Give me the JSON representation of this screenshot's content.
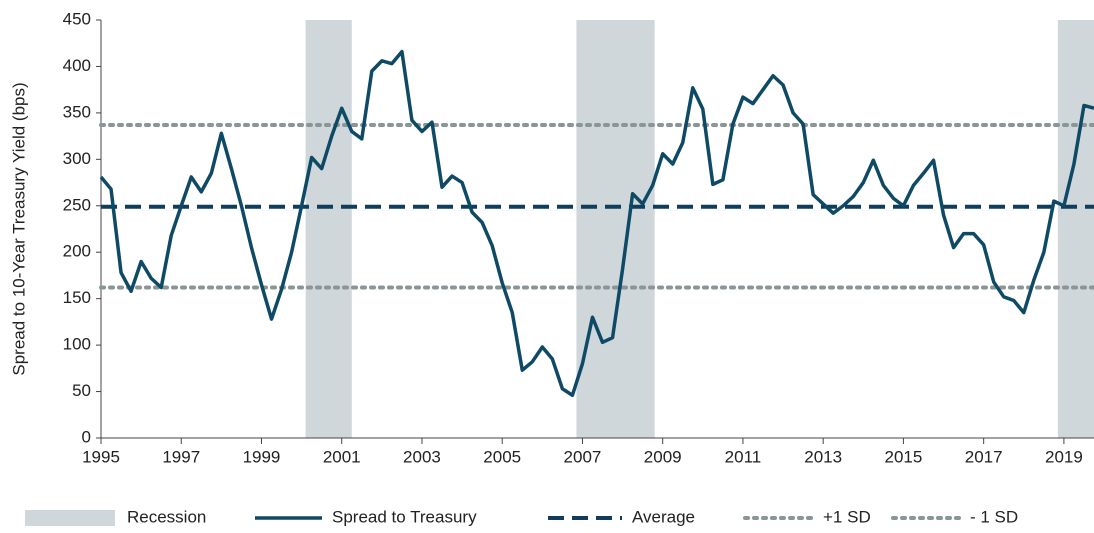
{
  "chart_data": {
    "type": "line",
    "ylabel": "Spread to 10-Year Treasury Yield (bps)",
    "xlim": [
      1995,
      2019.75
    ],
    "xticks": [
      1995,
      1997,
      1999,
      2001,
      2003,
      2005,
      2007,
      2009,
      2011,
      2013,
      2015,
      2017,
      2019
    ],
    "ylim": [
      0,
      450
    ],
    "yticks": [
      0,
      50,
      100,
      150,
      200,
      250,
      300,
      350,
      400,
      450
    ],
    "x": [
      1995,
      1995.25,
      1995.5,
      1995.75,
      1996,
      1996.25,
      1996.5,
      1996.75,
      1997,
      1997.25,
      1997.5,
      1997.75,
      1998,
      1998.25,
      1998.5,
      1998.75,
      1999,
      1999.25,
      1999.5,
      1999.75,
      2000,
      2000.25,
      2000.5,
      2000.75,
      2001,
      2001.25,
      2001.5,
      2001.75,
      2002,
      2002.25,
      2002.5,
      2002.75,
      2003,
      2003.25,
      2003.5,
      2003.75,
      2004,
      2004.25,
      2004.5,
      2004.75,
      2005,
      2005.25,
      2005.5,
      2005.75,
      2006,
      2006.25,
      2006.5,
      2006.75,
      2007,
      2007.25,
      2007.5,
      2007.75,
      2008,
      2008.25,
      2008.5,
      2008.75,
      2009,
      2009.25,
      2009.5,
      2009.75,
      2010,
      2010.25,
      2010.5,
      2010.75,
      2011,
      2011.25,
      2011.5,
      2011.75,
      2012,
      2012.25,
      2012.5,
      2012.75,
      2013,
      2013.25,
      2013.5,
      2013.75,
      2014,
      2014.25,
      2014.5,
      2014.75,
      2015,
      2015.25,
      2015.5,
      2015.75,
      2016,
      2016.25,
      2016.5,
      2016.75,
      2017,
      2017.25,
      2017.5,
      2017.75,
      2018,
      2018.25,
      2018.5,
      2018.75,
      2019,
      2019.25,
      2019.5,
      2019.75
    ],
    "series": [
      {
        "name": "Spread to Treasury",
        "color": "#0e4a66",
        "values": [
          281,
          268,
          178,
          158,
          190,
          172,
          162,
          218,
          250,
          281,
          265,
          285,
          328,
          290,
          250,
          205,
          165,
          128,
          160,
          200,
          250,
          302,
          290,
          325,
          355,
          330,
          322,
          395,
          406,
          403,
          416,
          342,
          330,
          340,
          270,
          282,
          275,
          243,
          232,
          207,
          167,
          135,
          73,
          82,
          98,
          85,
          53,
          46,
          80,
          130,
          103,
          108,
          182,
          263,
          252,
          272,
          306,
          295,
          318,
          377,
          354,
          273,
          278,
          338,
          367,
          360,
          375,
          390,
          380,
          350,
          338,
          262,
          252,
          242,
          250,
          260,
          275,
          299,
          272,
          258,
          250,
          272,
          285,
          299,
          240,
          205,
          220,
          220,
          208,
          168,
          152,
          148,
          135,
          170,
          200,
          255,
          250,
          295,
          358,
          355
        ]
      }
    ],
    "bands": {
      "name": "Recession",
      "color": "#d0d7da",
      "ranges": [
        [
          2000.1,
          2001.25
        ],
        [
          2006.85,
          2008.8
        ],
        [
          2018.85,
          2019.75
        ]
      ]
    },
    "hlines": [
      {
        "name": "Average",
        "value": 249,
        "color": "#0f3d5a",
        "style": "dashed"
      },
      {
        "name": "+1 SD",
        "value": 337,
        "color": "#8a9597",
        "style": "dotted"
      },
      {
        "name": "- 1 SD",
        "value": 162,
        "color": "#8a9597",
        "style": "dotted"
      }
    ],
    "legend": "bottom"
  }
}
